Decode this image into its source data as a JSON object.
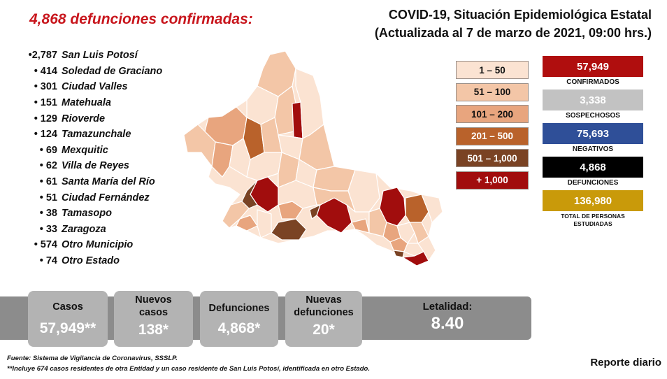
{
  "headline": "4,868 defunciones confirmadas:",
  "title": {
    "line1": "COVID-19, Situación Epidemiológica Estatal",
    "line2": "(Actualizada al 7 de marzo de 2021, 09:00 hrs.)"
  },
  "municipalities": [
    {
      "num": "•2,787",
      "name": "San Luis Potosí"
    },
    {
      "num": "• 414",
      "name": "Soledad de Graciano"
    },
    {
      "num": "• 301",
      "name": "Ciudad Valles"
    },
    {
      "num": "• 151",
      "name": "Matehuala"
    },
    {
      "num": "• 129",
      "name": "Rioverde"
    },
    {
      "num": "• 124",
      "name": "Tamazunchale"
    },
    {
      "num": "• 69",
      "name": "Mexquitic"
    },
    {
      "num": "• 62",
      "name": "Villa de Reyes"
    },
    {
      "num": "• 61",
      "name": "Santa María del Río"
    },
    {
      "num": "• 51",
      "name": "Ciudad Fernández"
    },
    {
      "num": "• 38",
      "name": "Tamasopo"
    },
    {
      "num": "• 33",
      "name": "Zaragoza"
    },
    {
      "num": "• 574",
      "name": "Otro Municipio"
    },
    {
      "num": "• 74",
      "name": "Otro Estado"
    }
  ],
  "legend": [
    {
      "label": "1 – 50",
      "color": "#fbe3d2",
      "text_color": "#111111"
    },
    {
      "label": "51 – 100",
      "color": "#f3c6a7",
      "text_color": "#111111"
    },
    {
      "label": "101 – 200",
      "color": "#e8a57e",
      "text_color": "#111111"
    },
    {
      "label": "201 – 500",
      "color": "#b9622b",
      "text_color": "#ffffff"
    },
    {
      "label": "501 – 1,000",
      "color": "#7a4324",
      "text_color": "#ffffff"
    },
    {
      "label": "+ 1,000",
      "color": "#a10d0d",
      "text_color": "#ffffff"
    }
  ],
  "stats": [
    {
      "value": "57,949",
      "label": "CONFIRMADOS",
      "color": "#b00e0e"
    },
    {
      "value": "3,338",
      "label": "SOSPECHOSOS",
      "color": "#c2c2c2"
    },
    {
      "value": "75,693",
      "label": "NEGATIVOS",
      "color": "#2f4f98"
    },
    {
      "value": "4,868",
      "label": "DEFUNCIONES",
      "color": "#000000"
    },
    {
      "value": "136,980",
      "label": "TOTAL DE PERSONAS ESTUDIADAS",
      "color": "#c99a0a"
    }
  ],
  "cards": {
    "casos": {
      "label": "Casos",
      "value": "57,949**"
    },
    "nuevos_casos": {
      "label": "Nuevos casos",
      "value": "138*"
    },
    "defunciones": {
      "label": "Defunciones",
      "value": "4,868*"
    },
    "nuevas_defunciones": {
      "label": "Nuevas defunciones",
      "value": "20*"
    }
  },
  "letalidad": {
    "label": "Letalidad:",
    "value": "8.40"
  },
  "footnotes": {
    "source": "Fuente: Sistema de Vigilancia de Coronavirus, SSSLP.",
    "note": "**Incluye 674 casos residentes de otra Entidad y un caso residente de San Luis Potosí, identificada en otro Estado."
  },
  "report": "Reporte diario"
}
